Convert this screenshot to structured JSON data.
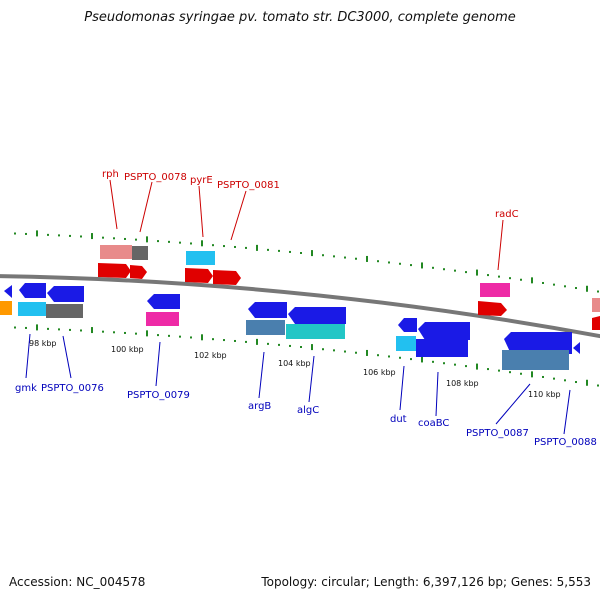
{
  "title": "Pseudomonas syringae pv. tomato str. DC3000, complete genome",
  "footer": {
    "accession_label": "Accession:",
    "accession": "NC_004578",
    "topology_label": "Topology:",
    "topology": "circular",
    "length_label": "Length:",
    "length": "6,397,126 bp",
    "genes_label": "Genes:",
    "genes": "5,553"
  },
  "colors": {
    "backbone": "#777777",
    "tick": "#228822",
    "forward_label": "#cc0000",
    "reverse_label": "#0000bb",
    "scale_label": "#111111"
  },
  "scale_labels": [
    "98 kbp",
    "100 kbp",
    "102 kbp",
    "104 kbp",
    "106 kbp",
    "108 kbp",
    "110 kbp"
  ],
  "forward_genes": [
    {
      "name": "rph",
      "colors": [
        "#e88a8a",
        "#e00000"
      ]
    },
    {
      "name": "PSPTO_0078",
      "colors": [
        "#666666",
        "#e00000"
      ]
    },
    {
      "name": "pyrE",
      "colors": [
        "#22c0f0",
        "#e00000"
      ]
    },
    {
      "name": "PSPTO_0081",
      "colors": [
        "#e00000"
      ]
    },
    {
      "name": "radC",
      "colors": [
        "#ee2aa6",
        "#e00000"
      ]
    }
  ],
  "reverse_genes": [
    {
      "name": "gmk",
      "colors": [
        "#1a1ae6",
        "#22c0f0"
      ]
    },
    {
      "name": "PSPTO_0076",
      "colors": [
        "#1a1ae6",
        "#666666"
      ]
    },
    {
      "name": "PSPTO_0079",
      "colors": [
        "#1a1ae6",
        "#ee2aa6"
      ]
    },
    {
      "name": "argB",
      "colors": [
        "#1a1ae6",
        "#4a7fae"
      ]
    },
    {
      "name": "algC",
      "colors": [
        "#1a1ae6",
        "#22c6c6"
      ]
    },
    {
      "name": "dut",
      "colors": [
        "#1a1ae6",
        "#22c0f0"
      ]
    },
    {
      "name": "coaBC",
      "colors": [
        "#1a1ae6"
      ]
    },
    {
      "name": "PSPTO_0087",
      "colors": [
        "#1a1ae6",
        "#4a7fae"
      ]
    },
    {
      "name": "PSPTO_0088",
      "colors": [
        "#1a1ae6"
      ]
    }
  ]
}
